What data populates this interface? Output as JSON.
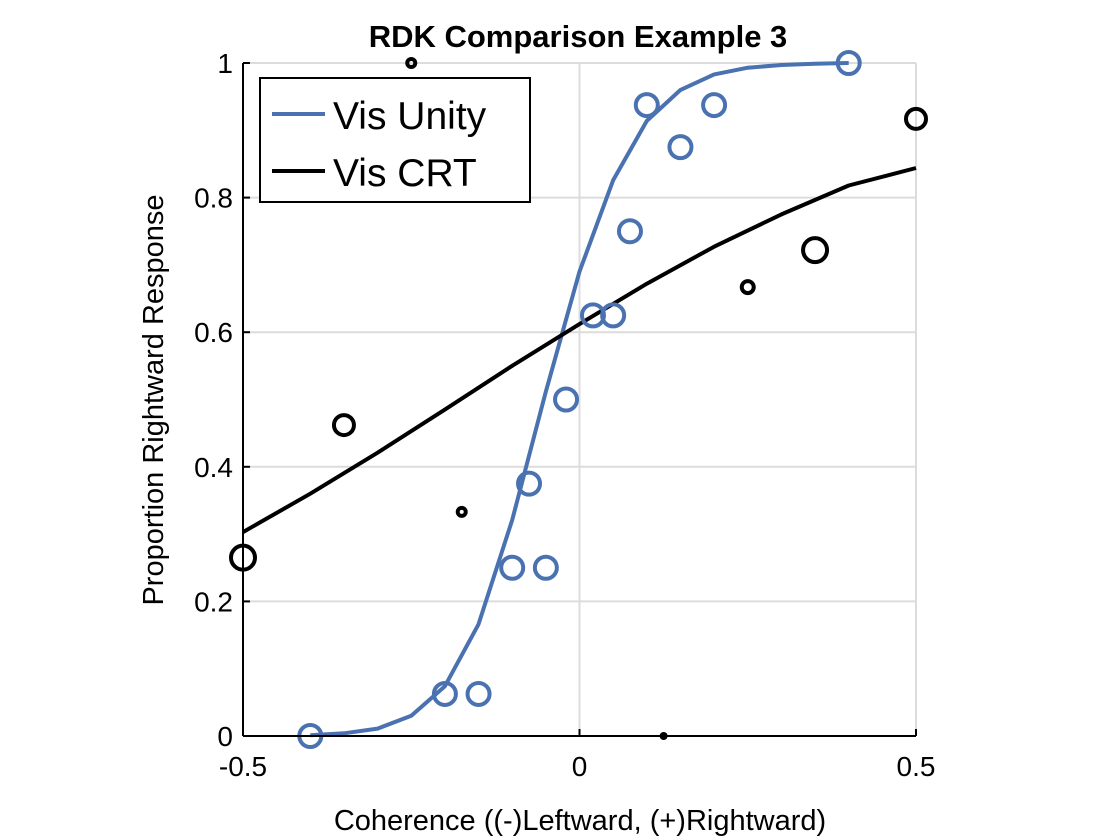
{
  "chart_data": {
    "type": "scatter",
    "title": "RDK Comparison Example 3",
    "xlabel": "Coherence ((-)Leftward, (+)Rightward)",
    "ylabel": "Proportion Rightward Response",
    "xlim": [
      -0.5,
      0.5
    ],
    "ylim": [
      0,
      1
    ],
    "xticks": [
      -0.5,
      0,
      0.5
    ],
    "xtick_labels": [
      "-0.5",
      "0",
      "0.5"
    ],
    "yticks": [
      0,
      0.2,
      0.4,
      0.6,
      0.8,
      1
    ],
    "ytick_labels": [
      "0",
      "0.2",
      "0.4",
      "0.6",
      "0.8",
      "1"
    ],
    "grid": true,
    "legend_position": "top-left",
    "series": [
      {
        "name": "Vis Unity",
        "color": "#4a72b0",
        "points": [
          {
            "x": -0.4,
            "y": 0.0,
            "size": 11
          },
          {
            "x": -0.2,
            "y": 0.0625,
            "size": 11
          },
          {
            "x": -0.15,
            "y": 0.0625,
            "size": 11
          },
          {
            "x": -0.1,
            "y": 0.25,
            "size": 11
          },
          {
            "x": -0.05,
            "y": 0.25,
            "size": 11
          },
          {
            "x": -0.075,
            "y": 0.375,
            "size": 11
          },
          {
            "x": -0.02,
            "y": 0.5,
            "size": 11
          },
          {
            "x": 0.02,
            "y": 0.625,
            "size": 11
          },
          {
            "x": 0.05,
            "y": 0.625,
            "size": 11
          },
          {
            "x": 0.075,
            "y": 0.75,
            "size": 11
          },
          {
            "x": 0.15,
            "y": 0.875,
            "size": 11
          },
          {
            "x": 0.1,
            "y": 0.9375,
            "size": 11
          },
          {
            "x": 0.2,
            "y": 0.9375,
            "size": 11
          },
          {
            "x": 0.4,
            "y": 1.0,
            "size": 11
          }
        ],
        "fit": {
          "x": [
            -0.4,
            -0.35,
            -0.3,
            -0.25,
            -0.2,
            -0.15,
            -0.1,
            -0.05,
            0.0,
            0.05,
            0.1,
            0.15,
            0.2,
            0.25,
            0.3,
            0.35,
            0.4
          ],
          "y": [
            0.001,
            0.004,
            0.011,
            0.03,
            0.074,
            0.166,
            0.321,
            0.512,
            0.69,
            0.826,
            0.914,
            0.96,
            0.983,
            0.993,
            0.997,
            0.999,
            1.0
          ]
        }
      },
      {
        "name": "Vis CRT",
        "color": "#000000",
        "points": [
          {
            "x": -0.5,
            "y": 0.265,
            "size": 12
          },
          {
            "x": -0.35,
            "y": 0.462,
            "size": 10
          },
          {
            "x": -0.25,
            "y": 1.0,
            "size": 4
          },
          {
            "x": -0.175,
            "y": 0.333,
            "size": 4
          },
          {
            "x": 0.125,
            "y": 0.0,
            "size": 2
          },
          {
            "x": 0.25,
            "y": 0.667,
            "size": 6
          },
          {
            "x": 0.35,
            "y": 0.722,
            "size": 12
          },
          {
            "x": 0.5,
            "y": 0.917,
            "size": 10
          }
        ],
        "fit": {
          "x": [
            -0.5,
            -0.4,
            -0.3,
            -0.2,
            -0.1,
            0.0,
            0.1,
            0.2,
            0.3,
            0.4,
            0.5
          ],
          "y": [
            0.303,
            0.36,
            0.421,
            0.485,
            0.55,
            0.612,
            0.672,
            0.727,
            0.775,
            0.818,
            0.844
          ]
        }
      }
    ]
  }
}
